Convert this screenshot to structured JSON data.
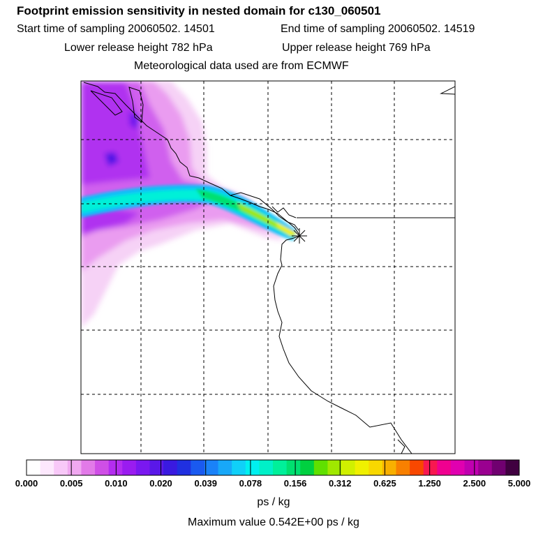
{
  "title": "Footprint emission sensitivity in nested domain for c130_060501",
  "start_label": "Start time of sampling 20060502. 14501",
  "end_label": "End time of sampling 20060502. 14519",
  "lower_label": "Lower release height  782 hPa",
  "upper_label": "Upper release height  769 hPa",
  "met_label": "Meteorological data used are from ECMWF",
  "colorbar": {
    "ticks": [
      "0.000",
      "0.005",
      "0.010",
      "0.020",
      "0.039",
      "0.078",
      "0.156",
      "0.312",
      "0.625",
      "1.250",
      "2.500",
      "5.000"
    ],
    "colors": [
      "#ffffff",
      "#fde8fd",
      "#f8c8f8",
      "#f0a8f0",
      "#e27ae8",
      "#cf4fe6",
      "#b42df0",
      "#9a1cf0",
      "#7a18f0",
      "#5a18e8",
      "#3a1ae0",
      "#2030e0",
      "#1a5af0",
      "#1a82f8",
      "#18a8f8",
      "#10d0f8",
      "#00f0f0",
      "#00f0c8",
      "#00f09a",
      "#00e070",
      "#00d040",
      "#60e000",
      "#a0e800",
      "#d0f000",
      "#f0f000",
      "#f8d800",
      "#f8b000",
      "#f88000",
      "#f84800",
      "#f81850",
      "#f00090",
      "#e000b0",
      "#c000b0",
      "#9a0090",
      "#700070",
      "#400040"
    ],
    "unit": "ps / kg",
    "max_text": "Maximum value  0.542E+00 ps / kg"
  },
  "map": {
    "background": "#ffffff",
    "grid": "dashed",
    "source_marker": "star-icon"
  }
}
